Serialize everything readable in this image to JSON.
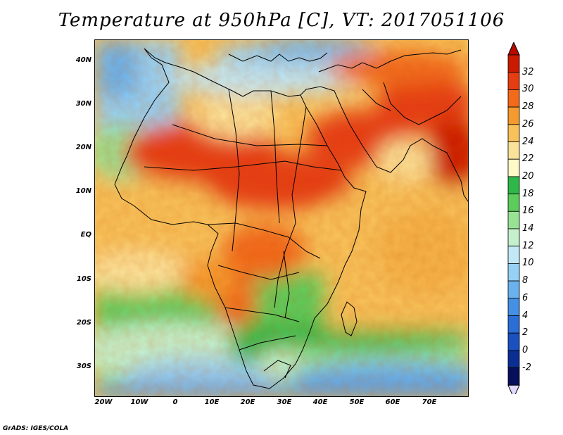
{
  "title": "Temperature at 950hPa [C], VT: 2017051106",
  "footer": "GrADS: IGES/COLA",
  "lat_labels": [
    "40N",
    "30N",
    "20N",
    "10N",
    "EQ",
    "10S",
    "20S",
    "30S"
  ],
  "lon_labels": [
    "20W",
    "10W",
    "0",
    "10E",
    "20E",
    "30E",
    "40E",
    "50E",
    "60E",
    "70E"
  ],
  "colorbar": {
    "labels": [
      "32",
      "30",
      "28",
      "26",
      "24",
      "22",
      "20",
      "18",
      "16",
      "14",
      "12",
      "10",
      "8",
      "6",
      "4",
      "2",
      "0",
      "-2"
    ],
    "colors": [
      "#cc1a00",
      "#e63c12",
      "#f26a1a",
      "#f59a2e",
      "#f8c15a",
      "#fbe29a",
      "#fff8c8",
      "#2fb84a",
      "#5ccc5c",
      "#98e294",
      "#c4f0cc",
      "#c2e8f6",
      "#96d0f4",
      "#6ab2ee",
      "#4590e4",
      "#2a6ed6",
      "#1a50c0",
      "#0a2e92",
      "#06105a"
    ],
    "top_arrow_color": "#b80a00",
    "bottom_arrow_color": "#e0d8ff"
  }
}
